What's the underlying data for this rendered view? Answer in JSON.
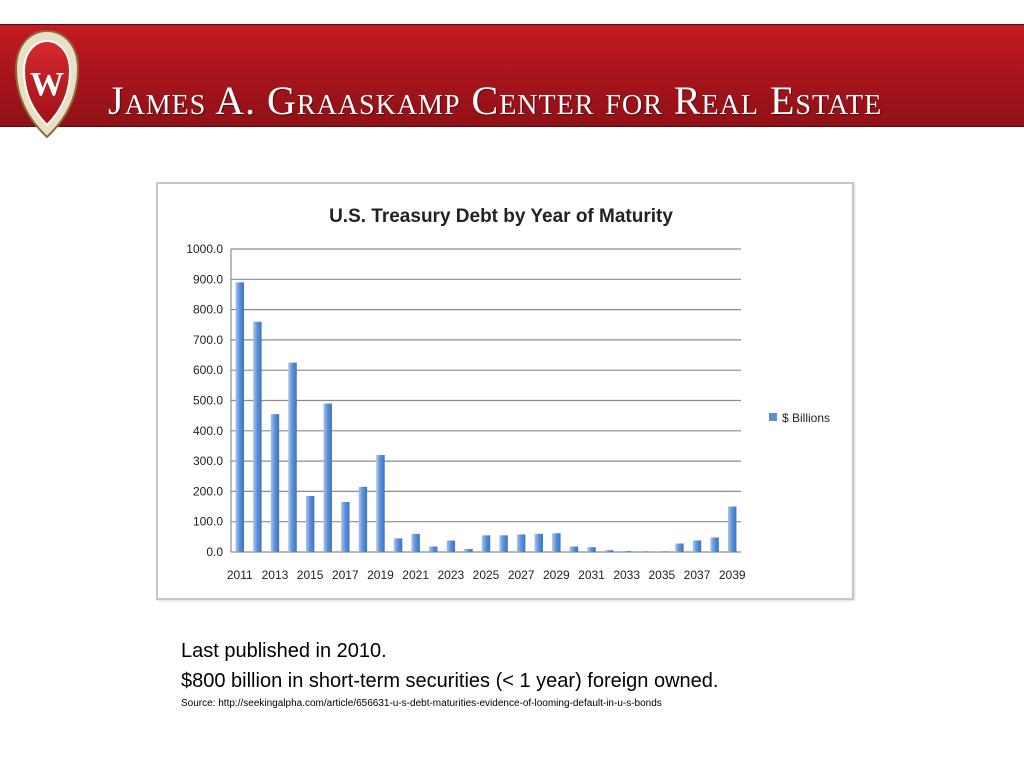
{
  "header": {
    "title": "James A. Graaskamp Center for Real Estate",
    "crest_letter": "W",
    "colors": {
      "banner": "#b5171e",
      "crest_frame": "#e8dcc0",
      "crest_shield": "#c41a22"
    }
  },
  "chart_data": {
    "type": "bar",
    "title": "U.S. Treasury Debt by Year of Maturity",
    "xlabel": "",
    "ylabel": "",
    "categories": [
      "2011",
      "2012",
      "2013",
      "2014",
      "2015",
      "2016",
      "2017",
      "2018",
      "2019",
      "2020",
      "2021",
      "2022",
      "2023",
      "2024",
      "2025",
      "2026",
      "2027",
      "2028",
      "2029",
      "2030",
      "2031",
      "2032",
      "2033",
      "2034",
      "2035",
      "2036",
      "2037",
      "2038",
      "2039"
    ],
    "x_tick_labels": [
      "2011",
      "2013",
      "2015",
      "2017",
      "2019",
      "2021",
      "2023",
      "2025",
      "2027",
      "2029",
      "2031",
      "2033",
      "2035",
      "2037",
      "2039"
    ],
    "series": [
      {
        "name": "$ Billions",
        "color": "#5b8fd6",
        "values": [
          890,
          760,
          455,
          625,
          185,
          490,
          165,
          215,
          320,
          45,
          60,
          18,
          38,
          10,
          55,
          55,
          58,
          60,
          62,
          18,
          16,
          6,
          3,
          2,
          2,
          28,
          38,
          48,
          150
        ]
      }
    ],
    "y_tick_labels": [
      "0.0",
      "100.0",
      "200.0",
      "300.0",
      "400.0",
      "500.0",
      "600.0",
      "700.0",
      "800.0",
      "900.0",
      "1000.0"
    ],
    "ylim": [
      0,
      1000
    ],
    "grid": true,
    "legend_position": "right"
  },
  "captions": {
    "line1": "Last published in 2010.",
    "line2": "$800 billion in short-term securities (< 1 year) foreign owned.",
    "source": "Source:  http://seekingalpha.com/article/656631-u-s-debt-maturities-evidence-of-looming-default-in-u-s-bonds"
  }
}
